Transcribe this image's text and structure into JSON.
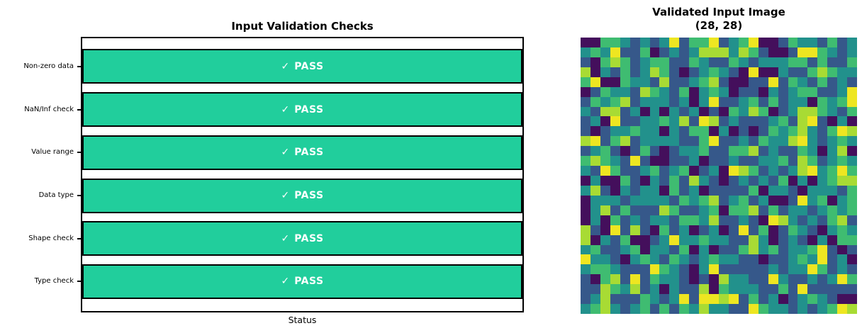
{
  "left_chart": {
    "title": "Input Validation Checks",
    "xlabel": "Status",
    "bar_color": "#21ce9c",
    "bar_edge_color": "#000000",
    "status_text_color": "#ffffff",
    "checks": [
      {
        "label": "Non-zero data",
        "check_mark": "✓",
        "status": "PASS"
      },
      {
        "label": "NaN/Inf check",
        "check_mark": "✓",
        "status": "PASS"
      },
      {
        "label": "Value range",
        "check_mark": "✓",
        "status": "PASS"
      },
      {
        "label": "Data type",
        "check_mark": "✓",
        "status": "PASS"
      },
      {
        "label": "Shape check",
        "check_mark": "✓",
        "status": "PASS"
      },
      {
        "label": "Type check",
        "check_mark": "✓",
        "status": "PASS"
      }
    ]
  },
  "right_chart": {
    "title_line1": "Validated Input Image",
    "title_line2": "(28, 28)"
  },
  "chart_data": [
    {
      "type": "bar",
      "orientation": "horizontal",
      "title": "Input Validation Checks",
      "xlabel": "Status",
      "ylabel": "",
      "categories": [
        "Non-zero data",
        "NaN/Inf check",
        "Value range",
        "Data type",
        "Shape check",
        "Type check"
      ],
      "values": [
        1,
        1,
        1,
        1,
        1,
        1
      ],
      "bar_labels": [
        "✓ PASS",
        "✓ PASS",
        "✓ PASS",
        "✓ PASS",
        "✓ PASS",
        "✓ PASS"
      ],
      "bar_color": "#21ce9c",
      "xlim": [
        0,
        1
      ],
      "grid": false,
      "legend": false
    },
    {
      "type": "heatmap",
      "title": "Validated Input Image (28, 28)",
      "colormap": "viridis",
      "shape": [
        28,
        28
      ],
      "axis": "off",
      "palette": {
        "P": "#440f5c",
        "B": "#36588a",
        "T": "#22918c",
        "G": "#3fbc71",
        "L": "#a8db34",
        "Y": "#eee621"
      },
      "value_scale": {
        "P": 0.05,
        "B": 0.3,
        "T": 0.5,
        "G": 0.7,
        "L": 0.85,
        "Y": 0.97
      },
      "rows": [
        "PPGGTBTBTYBGGYBTGYPPBGTTBGBT",
        "TGTYBBGPBTBTLLLTLGBPPBYYGTBT",
        "BPGLGBTGGBBGTBBGTBTTTGGBGBBG",
        "LPTBGBTLGBPBTGTBPYPPTBBGLGTT",
        "GYPPGTTBLBBTGLBPPBBYBGTBGBTB",
        "PBGTTBLGTBGPTGTPBBPTBTGGBBTY",
        "BGTGLBTTTBTPTYBBTGBGBTTPGTGY",
        "TBLLBTPTPTBTPBPGTLGPBTLLGTBG",
        "BTPYBBTTGTLBYLBTBBBTGBLYBPTP",
        "BPBTTGTTPTBGGPTPBPBGTGLTBGYL",
        "LYBGLBTTTTBBGYBBTBGTTLYTBTGT",
        "BTGBPBGBPBTTGBBGGLBTBBGTPTLP",
        "GLGTBYBPPBBTPBBTBBTTGBLGBTGT",
        "TBYGBBTGBTGPBTPYLGBTBTLYTGYG",
        "PTPPGBPTBGBLTBPBTBTBGPTPTGLL",
        "TLBPTBTTPGBTPBBBBGPTTBPTTTBG",
        "PTTTBTTTTBGTGLBTGBTPPBYTGPTG",
        "PTLBGBBBLGBBTGPGGLBGBTTBTGTG",
        "PTPGBTBTTBGGTLBBTBPYLTBTBGLB",
        "LBPYBLBPGBTPBTPBYBGPBGTBPTGT",
        "LPTBGPPBTYTTGTTBBLTPBTBPTPGG",
        "TGBBTGPTTBGPTPBBGLTGBTTGYBPB",
        "YTTBPTGTBGTBTGTTBBPBBTGTYBTP",
        "TGGTBBBYGTBPTYBBBBBTBTTYGBTB",
        "BPGLBYBGTTBPBPLTTBBYTBBTBTYG",
        "BBLGTLBTPTBBLPGTTTBBGBYBBBBB",
        "BTLBBBGTBTYBYYLYBGBTPBTGTBPP",
        "TGLTBTGBGBGTLTTBBYGTTBTBTGYL"
      ]
    }
  ]
}
